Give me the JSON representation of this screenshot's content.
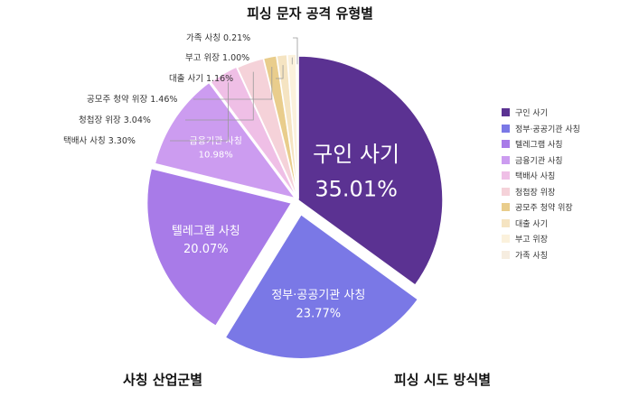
{
  "title": "피싱 문자 공격 유형별",
  "footer": {
    "left": "사칭 산업군별",
    "right": "피싱 시도 방식별"
  },
  "chart_data": {
    "type": "pie",
    "title": "피싱 문자 공격 유형별",
    "legend_position": "right",
    "slices": [
      {
        "label": "구인 사기",
        "value": 35.01,
        "pct_text": "35.01%",
        "color": "#5b3292",
        "text_color": "#ffffff"
      },
      {
        "label": "정부·공공기관 사칭",
        "value": 23.77,
        "pct_text": "23.77%",
        "color": "#7a78e6",
        "text_color": "#ffffff"
      },
      {
        "label": "텔레그램 사칭",
        "value": 20.07,
        "pct_text": "20.07%",
        "color": "#a87be8",
        "text_color": "#ffffff"
      },
      {
        "label": "금융기관 사칭",
        "value": 10.98,
        "pct_text": "10.98%",
        "color": "#cc9cf0",
        "text_color": "#ffffff"
      },
      {
        "label": "택배사 사칭",
        "value": 3.3,
        "pct_text": "3.30%",
        "callout": "택배사 사칭 3.30%",
        "color": "#efbfe6"
      },
      {
        "label": "청첩장 위장",
        "value": 3.04,
        "pct_text": "3.04%",
        "callout": "청첩장 위장 3.04%",
        "color": "#f5d2d9"
      },
      {
        "label": "공모주 청약 위장",
        "value": 1.46,
        "pct_text": "1.46%",
        "callout": "공모주 청약 위장 1.46%",
        "color": "#e9cd8c"
      },
      {
        "label": "대출 사기",
        "value": 1.16,
        "pct_text": "1.16%",
        "callout": "대출 사기 1.16%",
        "color": "#f5e4c2"
      },
      {
        "label": "부고 위장",
        "value": 1.0,
        "pct_text": "1.00%",
        "callout": "부고 위장 1.00%",
        "color": "#fbf1dc"
      },
      {
        "label": "가족 사칭",
        "value": 0.21,
        "pct_text": "0.21%",
        "callout": "가족 사칭 0.21%",
        "color": "#f6ede0"
      }
    ]
  }
}
